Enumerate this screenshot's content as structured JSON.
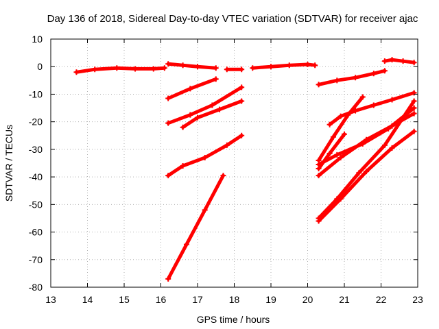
{
  "chart_data": {
    "type": "line",
    "title": "Day 136 of 2018, Sidereal Day-to-day VTEC variation (SDTVAR) for receiver ajac",
    "xlabel": "GPS time / hours",
    "ylabel": "SDTVAR / TECUs",
    "xlim": [
      13,
      23
    ],
    "ylim": [
      -80,
      10
    ],
    "xticks": [
      13,
      14,
      15,
      16,
      17,
      18,
      19,
      20,
      21,
      22,
      23
    ],
    "yticks": [
      10,
      0,
      -10,
      -20,
      -30,
      -40,
      -50,
      -60,
      -70,
      -80
    ],
    "grid": true,
    "legend": "none",
    "color": "#ff0000",
    "series": [
      {
        "x": [
          13.7,
          14.2,
          14.8,
          15.3,
          15.8,
          16.1
        ],
        "y": [
          -2,
          -1,
          -0.5,
          -0.8,
          -0.8,
          -0.5
        ]
      },
      {
        "x": [
          16.2,
          16.6,
          17.0,
          17.5
        ],
        "y": [
          1,
          0.5,
          0,
          -0.5
        ]
      },
      {
        "x": [
          17.8,
          18.2
        ],
        "y": [
          -1,
          -1
        ]
      },
      {
        "x": [
          18.5,
          19.0,
          19.5,
          20.0,
          20.2
        ],
        "y": [
          -0.5,
          0,
          0.5,
          0.8,
          0.5
        ]
      },
      {
        "x": [
          16.2,
          16.8,
          17.5
        ],
        "y": [
          -11.5,
          -8,
          -4.5
        ]
      },
      {
        "x": [
          16.2,
          16.8,
          17.4,
          18.2
        ],
        "y": [
          -20.5,
          -17.5,
          -14,
          -7.5
        ]
      },
      {
        "x": [
          16.6,
          17.0,
          17.6,
          18.2
        ],
        "y": [
          -22,
          -18.5,
          -15.5,
          -12.5
        ]
      },
      {
        "x": [
          16.2,
          16.6,
          17.2,
          17.8,
          18.2
        ],
        "y": [
          -39.5,
          -36,
          -33,
          -28.5,
          -25
        ]
      },
      {
        "x": [
          16.2,
          16.7,
          17.2,
          17.7
        ],
        "y": [
          -77,
          -64.5,
          -52,
          -39.5
        ]
      },
      {
        "x": [
          20.3,
          20.8,
          21.3,
          21.8,
          22.1
        ],
        "y": [
          -6.5,
          -5,
          -4,
          -2.5,
          -1.5
        ]
      },
      {
        "x": [
          22.1,
          22.3,
          22.6,
          22.9
        ],
        "y": [
          2,
          2.5,
          2,
          1.5
        ]
      },
      {
        "x": [
          20.6,
          20.9,
          21.3,
          21.8,
          22.3,
          22.9
        ],
        "y": [
          -21,
          -18,
          -16,
          -14,
          -12,
          -9.5
        ]
      },
      {
        "x": [
          20.3,
          20.7,
          21.1,
          21.5
        ],
        "y": [
          -34,
          -25.5,
          -17.5,
          -11
        ]
      },
      {
        "x": [
          20.3,
          20.6,
          21.0
        ],
        "y": [
          -37,
          -31.5,
          -24.5
        ]
      },
      {
        "x": [
          20.3,
          20.8,
          21.5,
          22.2,
          22.9
        ],
        "y": [
          -35.5,
          -32,
          -28,
          -22.5,
          -15
        ]
      },
      {
        "x": [
          20.3,
          20.9,
          21.6,
          22.3,
          22.9
        ],
        "y": [
          -39.5,
          -33,
          -26.5,
          -21.5,
          -17
        ]
      },
      {
        "x": [
          20.3,
          20.8,
          21.4,
          22.1,
          22.9
        ],
        "y": [
          -55,
          -48,
          -38.5,
          -28.5,
          -12.5
        ]
      },
      {
        "x": [
          20.3,
          20.9,
          21.6,
          22.3,
          22.9
        ],
        "y": [
          -56,
          -48,
          -38,
          -29.5,
          -23.5
        ]
      }
    ]
  }
}
